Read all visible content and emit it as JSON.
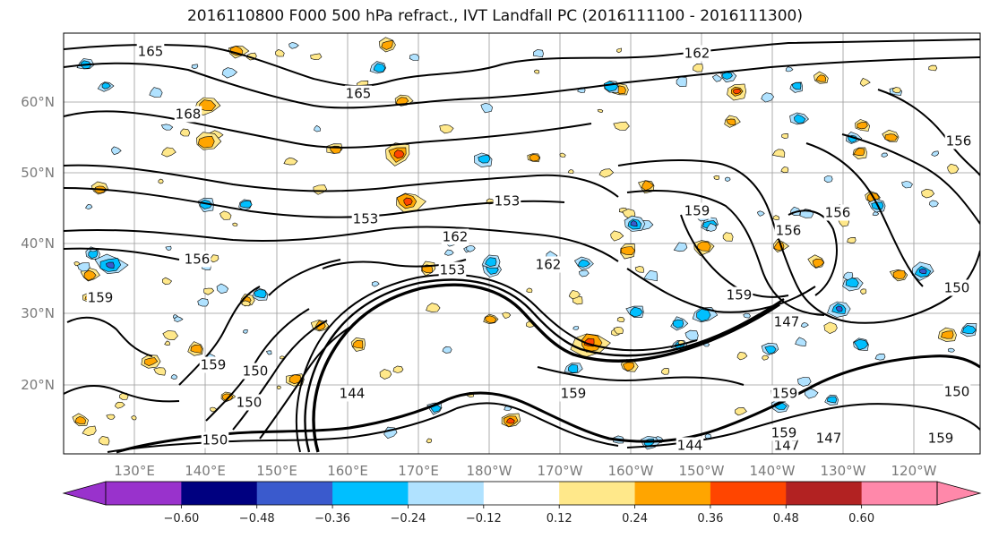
{
  "chart_data": {
    "type": "heatmap",
    "title": "2016110800 F000 500 hPa refract., IVT Landfall PC (2016111100 - 2016111300)",
    "map": {
      "x_ticks": [
        "130°E",
        "140°E",
        "150°E",
        "160°E",
        "170°E",
        "180°W",
        "170°W",
        "160°W",
        "150°W",
        "140°W",
        "130°W",
        "120°W"
      ],
      "y_ticks": [
        "20°N",
        "30°N",
        "40°N",
        "50°N",
        "60°N"
      ],
      "grid": true
    },
    "contour_labels": [
      "165",
      "162",
      "165",
      "168",
      "153",
      "153",
      "159",
      "162",
      "162",
      "159",
      "156",
      "156",
      "159",
      "153",
      "150",
      "159",
      "159",
      "147",
      "159",
      "144",
      "150",
      "150",
      "144",
      "147",
      "147",
      "159",
      "159",
      "150",
      "156",
      "156",
      "150"
    ],
    "colorbar": {
      "ticks": [
        "−0.60",
        "−0.48",
        "−0.36",
        "−0.24",
        "−0.12",
        "0.12",
        "0.24",
        "0.36",
        "0.48",
        "0.60"
      ],
      "colors": [
        "#9932cc",
        "#000080",
        "#3a5acd",
        "#00bfff",
        "#b0e2ff",
        "#ffffff",
        "#ffe88a",
        "#ffa500",
        "#ff4500",
        "#b22222",
        "#ff88aa"
      ],
      "extend": "both"
    }
  }
}
